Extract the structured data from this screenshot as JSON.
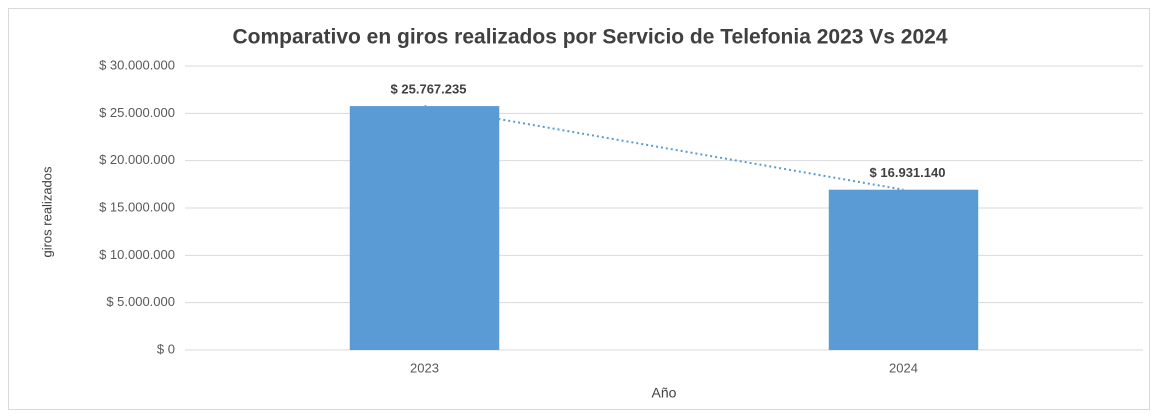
{
  "chart_data": {
    "type": "bar",
    "title": "Comparativo en giros realizados por Servicio de Telefonia 2023 Vs 2024",
    "x_label": "Año",
    "y_label": "giros realizados",
    "categories": [
      "2023",
      "2024"
    ],
    "values": [
      25767235,
      16931140
    ],
    "value_labels": [
      "$ 25.767.235",
      "$ 16.931.140"
    ],
    "color": "#5b9bd5",
    "trendline": true,
    "ylim": [
      0,
      30000000
    ],
    "yticks": [
      {
        "value": 0,
        "label": "$ 0"
      },
      {
        "value": 5000000,
        "label": "$ 5.000.000"
      },
      {
        "value": 10000000,
        "label": "$ 10.000.000"
      },
      {
        "value": 15000000,
        "label": "$ 15.000.000"
      },
      {
        "value": 20000000,
        "label": "$ 20.000.000"
      },
      {
        "value": 25000000,
        "label": "$ 25.000.000"
      },
      {
        "value": 30000000,
        "label": "$ 30.000.000"
      }
    ],
    "grid": true
  }
}
